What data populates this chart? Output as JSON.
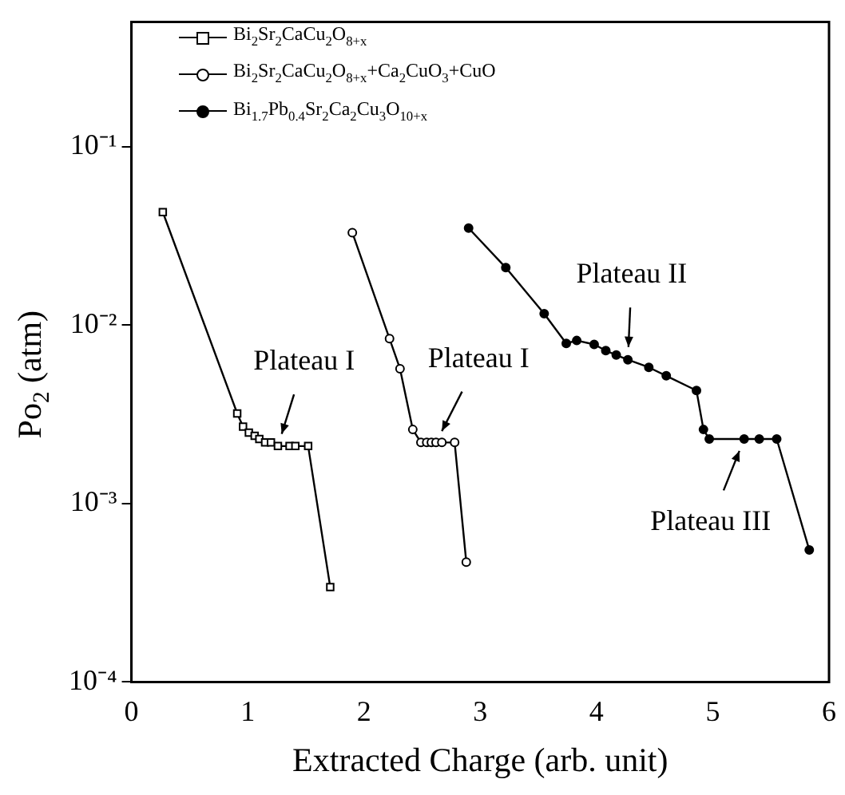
{
  "chart_data": {
    "type": "line",
    "xlabel": "Extracted Charge (arb. unit)",
    "ylabel": "Po$_{2}$ (atm)",
    "log": "y",
    "xlim": [
      0,
      6
    ],
    "xticks": [
      0,
      1,
      2,
      3,
      4,
      5,
      6
    ],
    "ylim": [
      0.0001,
      0.5
    ],
    "yticks": [
      {
        "value": 0.0001,
        "label": "10⁻⁴"
      },
      {
        "value": 0.001,
        "label": "10⁻³"
      },
      {
        "value": 0.01,
        "label": "10⁻²"
      },
      {
        "value": 0.1,
        "label": "10⁻¹"
      }
    ],
    "grid": false,
    "legend": "top left",
    "line_style": "solid",
    "series": [
      {
        "name": "Bi$_{2}$Sr$_{2}$CaCu$_{2}$O$_{8+x}$",
        "color": "#000000",
        "marker": "square",
        "x": [
          0.27,
          0.91,
          0.96,
          1.01,
          1.06,
          1.1,
          1.15,
          1.2,
          1.26,
          1.36,
          1.41,
          1.52,
          1.71
        ],
        "values": [
          0.043,
          0.0032,
          0.0027,
          0.0025,
          0.0024,
          0.0023,
          0.0022,
          0.0022,
          0.0021,
          0.0021,
          0.0021,
          0.0021,
          0.00034
        ]
      },
      {
        "name": "Bi$_{2}$Sr$_{2}$CaCu$_{2}$O$_{8+x}$+Ca$_{2}$CuO$_{3}$+CuO",
        "color": "#000000",
        "marker": "circle",
        "x": [
          1.9,
          2.22,
          2.31,
          2.42,
          2.49,
          2.54,
          2.58,
          2.62,
          2.67,
          2.78,
          2.88
        ],
        "values": [
          0.033,
          0.0084,
          0.0057,
          0.0026,
          0.0022,
          0.0022,
          0.0022,
          0.0022,
          0.0022,
          0.0022,
          0.00047
        ]
      },
      {
        "name": "Bi$_{1.7}$Pb$_{0.4}$Sr$_{2}$Ca$_{2}$Cu$_{3}$O$_{10+x}$",
        "color": "#000000",
        "marker": "circle",
        "x": [
          2.9,
          3.22,
          3.55,
          3.74,
          3.83,
          3.98,
          4.08,
          4.17,
          4.27,
          4.45,
          4.6,
          4.86,
          4.92,
          4.97,
          5.27,
          5.4,
          5.55,
          5.83
        ],
        "values": [
          0.035,
          0.021,
          0.0116,
          0.0079,
          0.0082,
          0.0078,
          0.0072,
          0.0068,
          0.0064,
          0.0058,
          0.0052,
          0.0043,
          0.0026,
          0.0023,
          0.0023,
          0.0023,
          0.0023,
          0.00055
        ]
      }
    ],
    "annotations": [
      {
        "text": "Plateau I",
        "x": 1.26,
        "y": 0.0021
      },
      {
        "text": "Plateau I",
        "x": 2.62,
        "y": 0.0022
      },
      {
        "text": "Plateau II",
        "x": 4.27,
        "y": 0.0064
      },
      {
        "text": "Plateau III",
        "x": 5.27,
        "y": 0.0023
      }
    ]
  }
}
